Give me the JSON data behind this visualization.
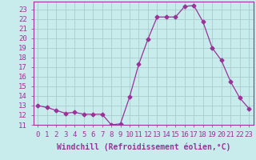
{
  "x": [
    0,
    1,
    2,
    3,
    4,
    5,
    6,
    7,
    8,
    9,
    10,
    11,
    12,
    13,
    14,
    15,
    16,
    17,
    18,
    19,
    20,
    21,
    22,
    23
  ],
  "y": [
    13,
    12.8,
    12.5,
    12.2,
    12.3,
    12.1,
    12.1,
    12.1,
    11.0,
    11.1,
    13.9,
    17.3,
    19.9,
    22.2,
    22.2,
    22.2,
    23.3,
    23.4,
    21.7,
    19.0,
    17.7,
    15.5,
    13.8,
    12.7
  ],
  "line_color": "#993399",
  "marker": "D",
  "markersize": 2.5,
  "linewidth": 0.9,
  "background_color": "#c8ecec",
  "grid_color": "#aacccc",
  "xlabel": "Windchill (Refroidissement éolien,°C)",
  "xlabel_fontsize": 7,
  "tick_fontsize": 6.5,
  "xlim": [
    -0.5,
    23.5
  ],
  "ylim": [
    11,
    23.8
  ],
  "yticks": [
    11,
    12,
    13,
    14,
    15,
    16,
    17,
    18,
    19,
    20,
    21,
    22,
    23
  ],
  "xticks": [
    0,
    1,
    2,
    3,
    4,
    5,
    6,
    7,
    8,
    9,
    10,
    11,
    12,
    13,
    14,
    15,
    16,
    17,
    18,
    19,
    20,
    21,
    22,
    23
  ]
}
